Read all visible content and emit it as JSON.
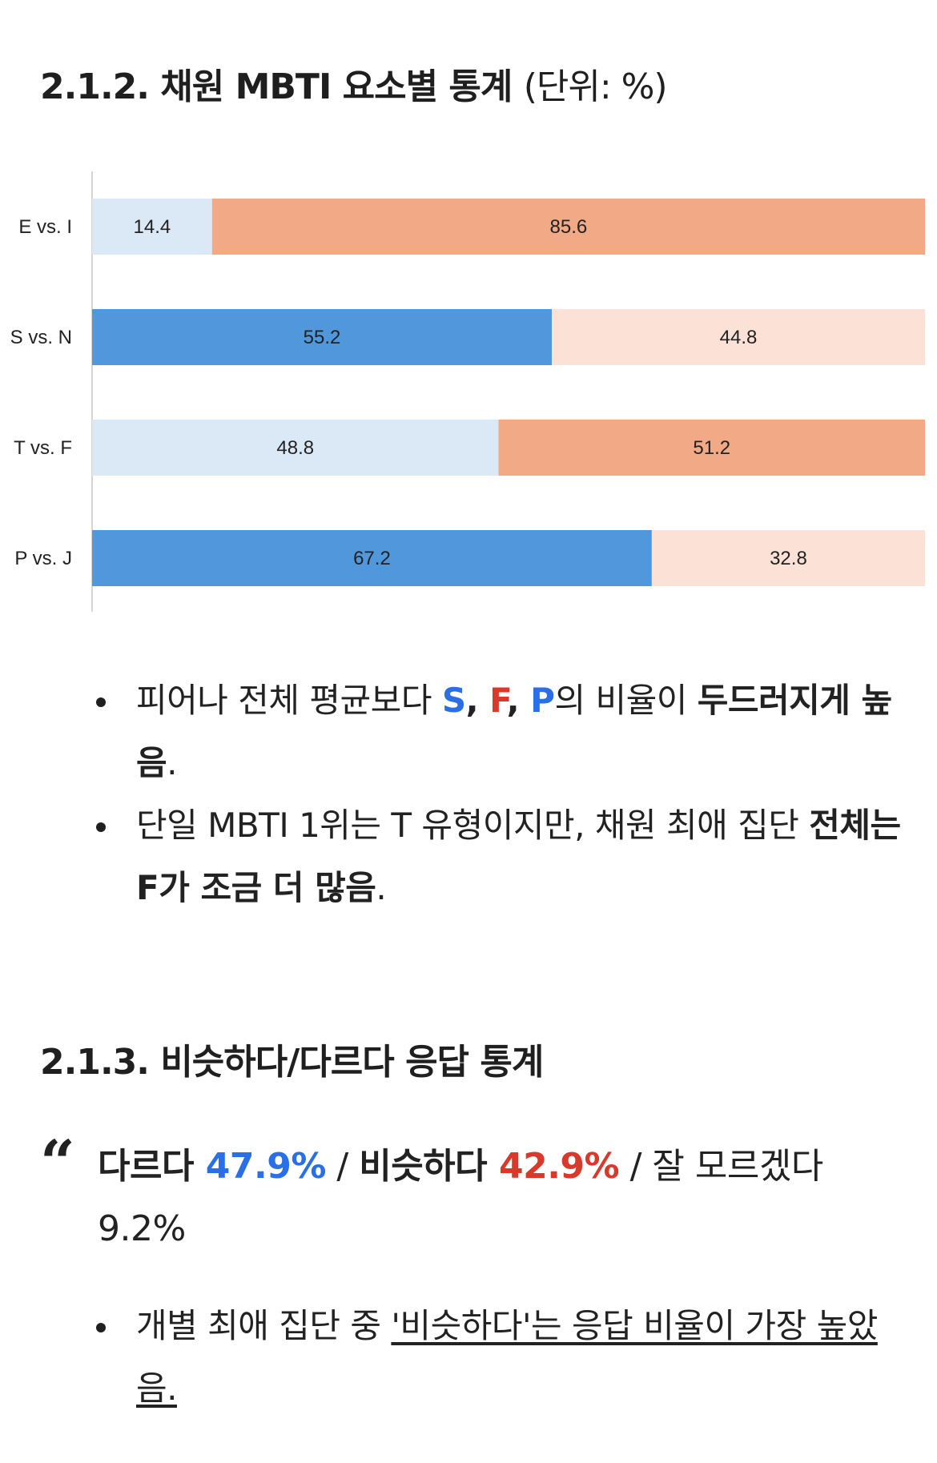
{
  "section1": {
    "number": "2.1.2.",
    "title": "채원 MBTI 요소별 통계",
    "unit": "(단위: %)"
  },
  "chart_data": {
    "type": "bar",
    "orientation": "horizontal",
    "stacked": true,
    "categories": [
      "E vs. I",
      "S vs. N",
      "T vs. F",
      "P vs. J"
    ],
    "series": [
      {
        "values": [
          14.4,
          55.2,
          48.8,
          67.2
        ]
      },
      {
        "values": [
          85.6,
          44.8,
          51.2,
          32.8
        ]
      }
    ],
    "xlim": [
      0,
      100
    ],
    "grid": false,
    "legend": "none",
    "colors": {
      "left_strong": "#5097dc",
      "left_light": "#dbe9f6",
      "right_strong": "#f2a985",
      "right_light": "#fce2d6"
    }
  },
  "bullets1": [
    {
      "parts": [
        {
          "text": "피어나 전체 평균보다 ",
          "style": ""
        },
        {
          "text": "S",
          "style": "blue"
        },
        {
          "text": ", ",
          "style": "b"
        },
        {
          "text": "F",
          "style": "red"
        },
        {
          "text": ", ",
          "style": "b"
        },
        {
          "text": "P",
          "style": "blue"
        },
        {
          "text": "의 비율이 ",
          "style": ""
        },
        {
          "text": "두드러지게 높음",
          "style": "b"
        },
        {
          "text": ".",
          "style": ""
        }
      ]
    },
    {
      "parts": [
        {
          "text": "단일 MBTI 1위는 T 유형이지만, 채원 최애 집단 ",
          "style": ""
        },
        {
          "text": "전체는 F가 조금 더 많음",
          "style": "b"
        },
        {
          "text": ".",
          "style": ""
        }
      ]
    }
  ],
  "section2": {
    "number": "2.1.3.",
    "title": "비슷하다/다르다 응답 통계"
  },
  "quote": {
    "mark": "“",
    "parts": [
      {
        "text": "다르다 ",
        "style": "b"
      },
      {
        "text": "47.9%",
        "style": "blue"
      },
      {
        "text": " / ",
        "style": ""
      },
      {
        "text": "비슷하다 ",
        "style": "b"
      },
      {
        "text": "42.9%",
        "style": "red"
      },
      {
        "text": " / 잘 모르겠다 9.2%",
        "style": ""
      }
    ]
  },
  "bullets2": [
    {
      "parts": [
        {
          "text": "개별 최애 집단 중 ",
          "style": ""
        },
        {
          "text": "'비슷하다'는 응답 비율이 가장 높았음.",
          "style": "ul"
        }
      ]
    }
  ]
}
